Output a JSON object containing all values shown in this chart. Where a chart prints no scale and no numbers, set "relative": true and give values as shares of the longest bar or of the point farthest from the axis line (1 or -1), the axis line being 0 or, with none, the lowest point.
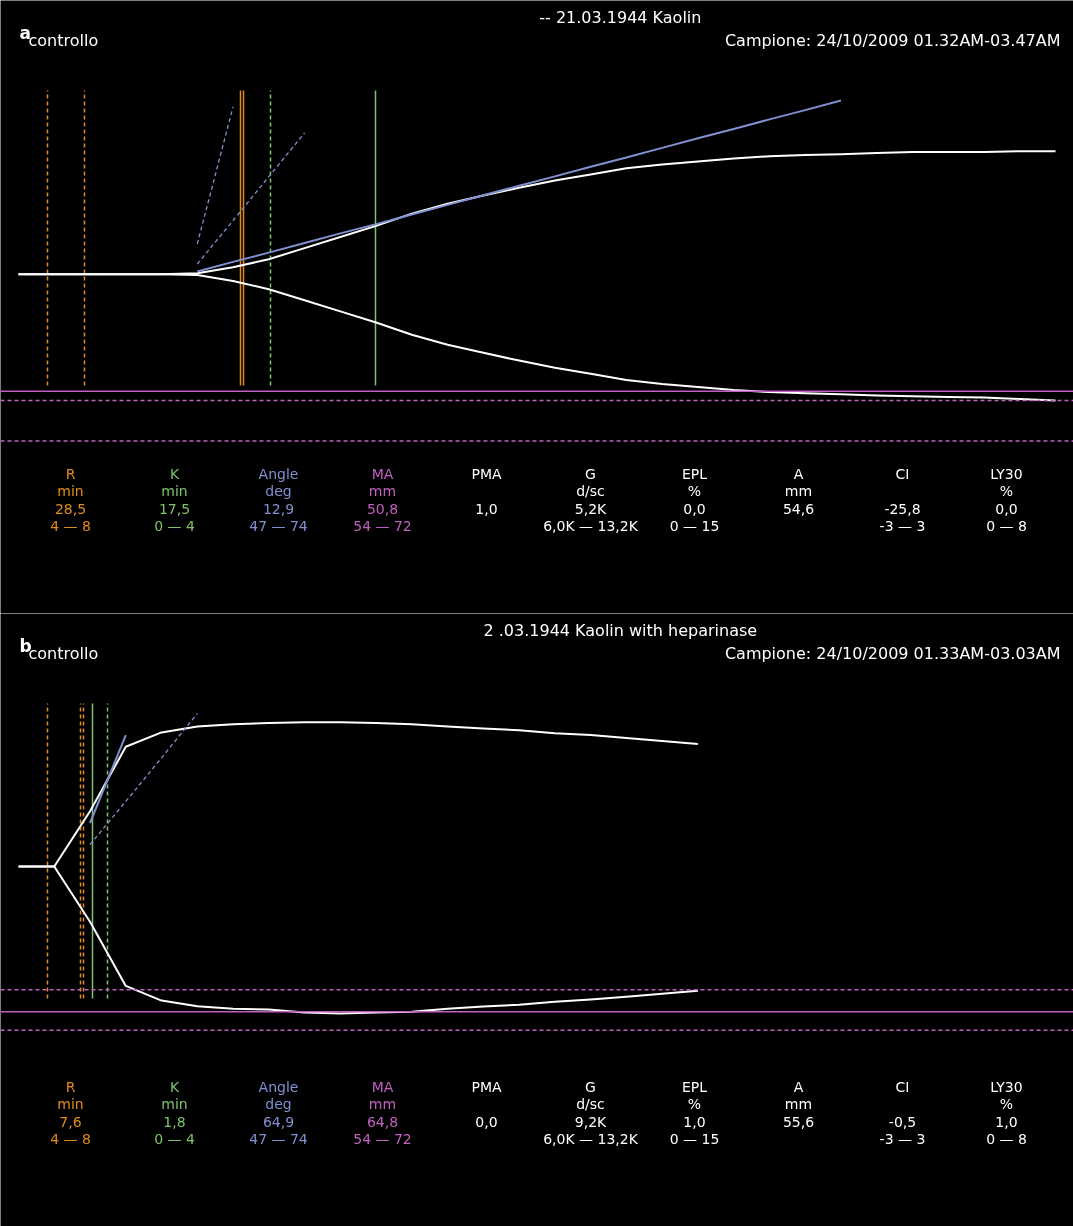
{
  "chart_data": [
    {
      "type": "line",
      "relative": true,
      "title": "-- 21.03.1944     Kaolin",
      "subtitle": "Campione: 24/10/2009 01.32AM-03.47AM",
      "tick_labels": false,
      "grid": false,
      "categories": [
        null,
        null,
        null,
        null,
        null,
        null,
        null,
        null,
        null,
        null,
        null,
        null,
        null,
        null,
        null,
        null,
        null,
        null,
        null,
        null,
        null,
        null,
        null,
        null,
        null,
        null,
        null,
        null,
        null,
        null
      ],
      "series": [
        {
          "color": "#ffffff",
          "line_style": "solid",
          "values": [
            0.421,
            0.421,
            0.421,
            0.421,
            0.421,
            0.424,
            0.444,
            0.471,
            0.508,
            0.545,
            0.582,
            0.623,
            0.656,
            0.683,
            0.709,
            0.733,
            0.753,
            0.774,
            0.787,
            0.797,
            0.807,
            0.814,
            0.818,
            0.821,
            0.825,
            0.828,
            0.828,
            0.828,
            0.831,
            0.831
          ]
        },
        {
          "color": "#ffffff",
          "line_style": "solid",
          "values": [
            0.421,
            0.421,
            0.421,
            0.421,
            0.421,
            0.418,
            0.398,
            0.371,
            0.334,
            0.297,
            0.26,
            0.219,
            0.186,
            0.159,
            0.133,
            0.109,
            0.089,
            0.068,
            0.055,
            0.045,
            0.035,
            0.028,
            0.024,
            0.021,
            0.017,
            0.014,
            0.012,
            0.01,
            0.005,
            0
          ]
        },
        {
          "color": "#8090d0",
          "line_style": "solid",
          "values": [
            null,
            null,
            null,
            null,
            null,
            0.43,
            0.462,
            0.493,
            0.525,
            0.557,
            0.588,
            0.62,
            0.652,
            0.684,
            0.716,
            0.747,
            0.779,
            0.81,
            0.842,
            0.874,
            0.905,
            0.937,
            0.968,
            1,
            null,
            null,
            null,
            null,
            null,
            null
          ]
        },
        {
          "color": "#8090d0",
          "line_style": "dashed",
          "values": [
            null,
            null,
            null,
            null,
            null,
            0.455,
            0.6,
            0.746,
            0.892,
            null,
            null,
            null,
            null,
            null,
            null,
            null,
            null,
            null,
            null,
            null,
            null,
            null,
            null,
            null,
            null,
            null,
            null,
            null,
            null,
            null
          ]
        },
        {
          "color": "#8090d0",
          "line_style": "dashed",
          "values": [
            null,
            null,
            null,
            null,
            null,
            0.522,
            0.979,
            null,
            null,
            null,
            null,
            null,
            null,
            null,
            null,
            null,
            null,
            null,
            null,
            null,
            null,
            null,
            null,
            null,
            null,
            null,
            null,
            null,
            null,
            null
          ]
        }
      ],
      "ref_lines": [
        {
          "axis": "y",
          "value": 0.031,
          "color": "#c060c0",
          "line_style": "solid"
        },
        {
          "axis": "y",
          "value": 0,
          "color": "#c060c0",
          "line_style": "dashed"
        },
        {
          "axis": "y",
          "value": -0.135,
          "color": "#c060c0",
          "line_style": "dashed"
        }
      ],
      "annotations": [
        "a",
        "controllo",
        "R\nmin\n28,5\n4 — 8",
        "K\nmin\n17,5\n0 — 4",
        "Angle\ndeg\n12,9\n47 — 74",
        "MA\nmm\n50,8\n54 — 72",
        "PMA\n\n1,0\n",
        "G\nd/sc\n5,2K\n6,0K — 13,2K",
        "EPL\n%\n0,0\n0 — 15",
        "A\nmm\n54,6\n",
        "CI\n\n-25,8\n-3 — 3",
        "LY30\n%\n0,0\n0 — 8"
      ]
    },
    {
      "type": "line",
      "relative": true,
      "title": "2 .03.1944     Kaolin with heparinase",
      "subtitle": "Campione: 24/10/2009 01.33AM-03.03AM",
      "tick_labels": false,
      "grid": false,
      "categories": [
        null,
        null,
        null,
        null,
        null,
        null,
        null,
        null,
        null,
        null,
        null,
        null,
        null,
        null,
        null,
        null,
        null,
        null,
        null,
        null,
        null,
        null,
        null,
        null,
        null,
        null,
        null,
        null,
        null,
        null
      ],
      "series": [
        {
          "color": "#ffffff",
          "line_style": "solid",
          "values": [
            0.49,
            0.49,
            0.674,
            0.889,
            0.937,
            0.957,
            0.964,
            0.968,
            0.971,
            0.971,
            0.968,
            0.964,
            0.957,
            0.95,
            0.944,
            0.934,
            0.928,
            0.918,
            0.908,
            0.898,
            null,
            null,
            null,
            null,
            null,
            null,
            null,
            null,
            null,
            null
          ]
        },
        {
          "color": "#ffffff",
          "line_style": "solid",
          "values": [
            0.49,
            0.49,
            0.306,
            0.092,
            0.043,
            0.024,
            0.016,
            0.013,
            0.003,
            0,
            0.003,
            0.006,
            0.016,
            0.023,
            0.029,
            0.039,
            0.047,
            0.056,
            0.066,
            0.076,
            null,
            null,
            null,
            null,
            null,
            null,
            null,
            null,
            null,
            null
          ]
        },
        {
          "color": "#8090d0",
          "line_style": "solid",
          "values": [
            null,
            null,
            0.635,
            0.928,
            null,
            null,
            null,
            null,
            null,
            null,
            null,
            null,
            null,
            null,
            null,
            null,
            null,
            null,
            null,
            null,
            null,
            null,
            null,
            null,
            null,
            null,
            null,
            null,
            null,
            null
          ]
        },
        {
          "color": "#8090d0",
          "line_style": "dashed",
          "values": [
            null,
            null,
            0.563,
            0.707,
            0.852,
            1,
            null,
            null,
            null,
            null,
            null,
            null,
            null,
            null,
            null,
            null,
            null,
            null,
            null,
            null,
            null,
            null,
            null,
            null,
            null,
            null,
            null,
            null,
            null,
            null
          ]
        }
      ],
      "ref_lines": [
        {
          "axis": "y",
          "value": 0.079,
          "color": "#c060c0",
          "line_style": "dashed"
        },
        {
          "axis": "y",
          "value": 0.006,
          "color": "#c060c0",
          "line_style": "solid"
        },
        {
          "axis": "y",
          "value": -0.056,
          "color": "#c060c0",
          "line_style": "dashed"
        }
      ],
      "annotations": [
        "b",
        "controllo",
        "R\nmin\n7,6\n4 — 8",
        "K\nmin\n1,8\n0 — 4",
        "Angle\ndeg\n64,9\n47 — 74",
        "MA\nmm\n64,8\n54 — 72",
        "PMA\n\n0,0\n",
        "G\nd/sc\n9,2K\n6,0K — 13,2K",
        "EPL\n%\n1,0\n0 — 15",
        "A\nmm\n55,6\n",
        "CI\n\n-0,5\n-3 — 3",
        "LY30\n%\n1,0\n0 — 8"
      ]
    }
  ]
}
